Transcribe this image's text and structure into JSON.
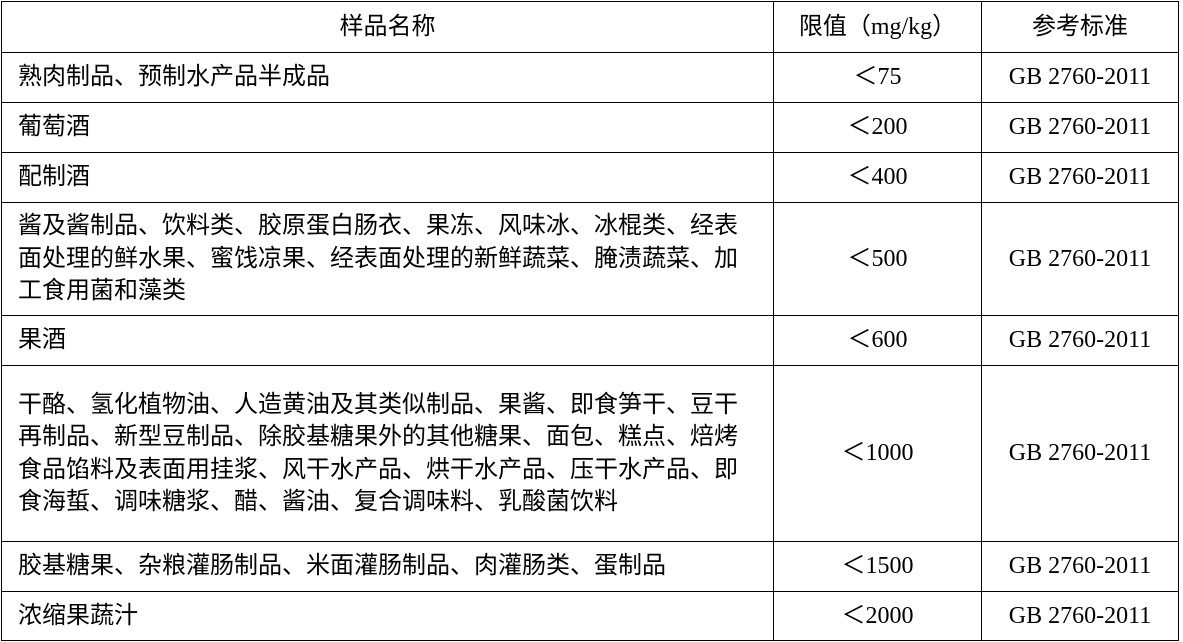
{
  "headers": {
    "name": "样品名称",
    "limit": "限值（mg/kg）",
    "standard": "参考标准"
  },
  "rows": [
    {
      "name": "熟肉制品、预制水产品半成品",
      "limit": "＜75",
      "standard": "GB 2760-2011"
    },
    {
      "name": "葡萄酒",
      "limit": "＜200",
      "standard": "GB 2760-2011"
    },
    {
      "name": "配制酒",
      "limit": "＜400",
      "standard": "GB 2760-2011"
    },
    {
      "name": "酱及酱制品、饮料类、胶原蛋白肠衣、果冻、风味冰、冰棍类、经表面处理的鲜水果、蜜饯凉果、经表面处理的新鲜蔬菜、腌渍蔬菜、加工食用菌和藻类",
      "limit": "＜500",
      "standard": "GB 2760-2011"
    },
    {
      "name": "果酒",
      "limit": "＜600",
      "standard": "GB 2760-2011"
    },
    {
      "name": "干酪、氢化植物油、人造黄油及其类似制品、果酱、即食笋干、豆干再制品、新型豆制品、除胶基糖果外的其他糖果、面包、糕点、焙烤食品馅料及表面用挂浆、风干水产品、烘干水产品、压干水产品、即食海蜇、调味糖浆、醋、酱油、复合调味料、乳酸菌饮料",
      "limit": "＜1000",
      "standard": "GB 2760-2011"
    },
    {
      "name": "胶基糖果、杂粮灌肠制品、米面灌肠制品、肉灌肠类、蛋制品",
      "limit": "＜1500",
      "standard": "GB 2760-2011"
    },
    {
      "name": "浓缩果蔬汁",
      "limit": "＜2000",
      "standard": "GB 2760-2011"
    }
  ]
}
